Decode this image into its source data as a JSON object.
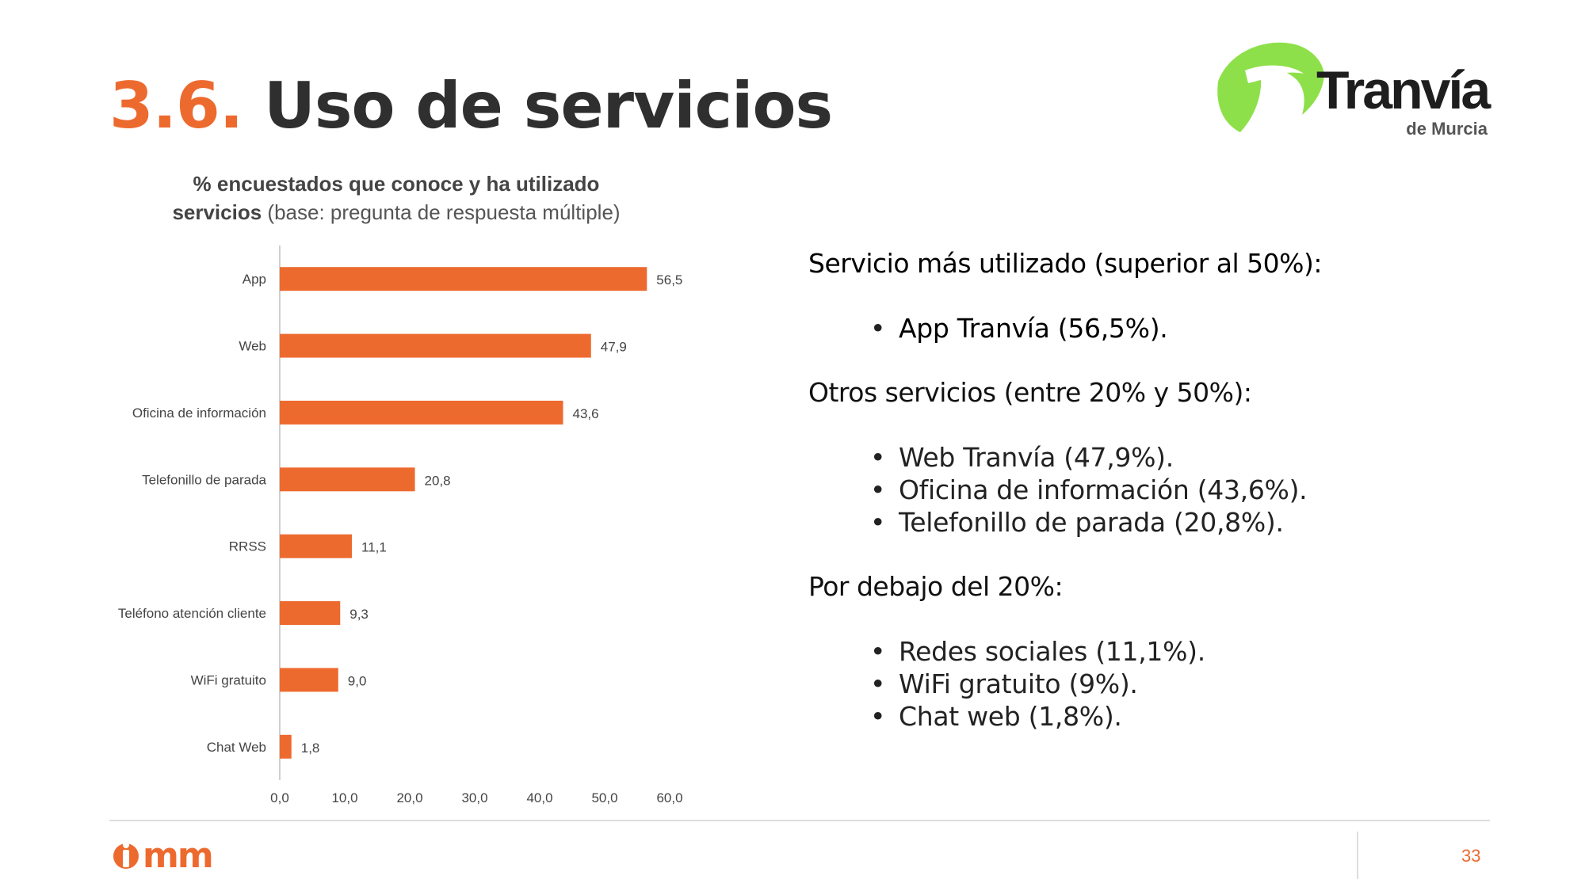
{
  "slide": {
    "title_number": "3.6.",
    "title_text": "Uso de servicios",
    "page_number": "33"
  },
  "brand": {
    "tranvia_name": "Tranvía",
    "tranvia_sub": "de Murcia",
    "footer_logo": "imm",
    "accent_color": "#ed6a2f",
    "green_color": "#8ee04a"
  },
  "chart_data": {
    "type": "bar",
    "orientation": "horizontal",
    "title_bold_1": "% encuestados que conoce y ha utilizado",
    "title_bold_2": "servicios",
    "title_rest": " (base: pregunta de respuesta múltiple)",
    "categories": [
      "App",
      "Web",
      "Oficina de información",
      "Telefonillo de parada",
      "RRSS",
      "Teléfono atención cliente",
      "WiFi gratuito",
      "Chat Web"
    ],
    "values": [
      56.5,
      47.9,
      43.6,
      20.8,
      11.1,
      9.3,
      9.0,
      1.8
    ],
    "value_labels": [
      "56,5",
      "47,9",
      "43,6",
      "20,8",
      "11,1",
      "9,3",
      "9,0",
      "1,8"
    ],
    "xlim": [
      0,
      60
    ],
    "xticks": [
      "0,0",
      "10,0",
      "20,0",
      "30,0",
      "40,0",
      "50,0",
      "60,0"
    ],
    "bar_color": "#ed6a2f",
    "grid": false,
    "legend": "none"
  },
  "summary": {
    "heading_top": "Servicio más utilizado (superior al 50%):",
    "top_items": [
      "App Tranvía (56,5%)."
    ],
    "heading_mid": "Otros servicios (entre 20% y 50%):",
    "mid_items": [
      "Web Tranvía (47,9%).",
      "Oficina de información (43,6%).",
      "Telefonillo de parada (20,8%)."
    ],
    "heading_low": "Por debajo del 20%:",
    "low_items": [
      "Redes sociales (11,1%).",
      "WiFi gratuito (9%).",
      "Chat web (1,8%)."
    ]
  }
}
